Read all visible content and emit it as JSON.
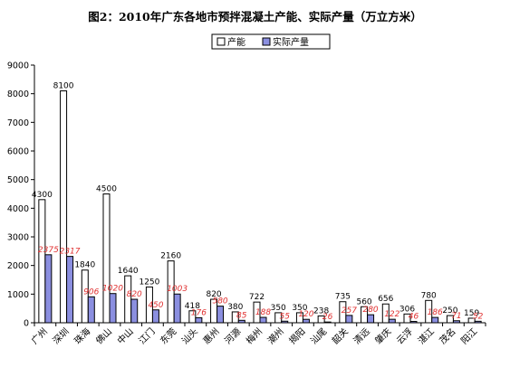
{
  "chart_data": {
    "type": "bar",
    "title": "图2：2010年广东各地市预拌混凝土产能、实际产量（万立方米）",
    "xlabel": "",
    "ylabel": "",
    "ylim": [
      0,
      9000
    ],
    "yticks": [
      0,
      1000,
      2000,
      3000,
      4000,
      5000,
      6000,
      7000,
      8000,
      9000
    ],
    "grid": false,
    "legend_position": "top-right",
    "categories": [
      "广州",
      "深圳",
      "珠海",
      "佛山",
      "中山",
      "江门",
      "东莞",
      "汕头",
      "惠州",
      "河源",
      "梅州",
      "潮州",
      "揭阳",
      "汕尾",
      "韶关",
      "清远",
      "肇庆",
      "云浮",
      "湛江",
      "茂名",
      "阳江"
    ],
    "series": [
      {
        "name": "产能",
        "color": "#ffffff",
        "label_color": "#000000",
        "values": [
          4300,
          8100,
          1840,
          4500,
          1640,
          1250,
          2160,
          418,
          820,
          380,
          722,
          350,
          350,
          238,
          735,
          560,
          656,
          306,
          780,
          250,
          159
        ]
      },
      {
        "name": "实际产量",
        "color": "#8b8fe0",
        "label_color": "#e03030",
        "values": [
          2375,
          2317,
          906,
          1020,
          820,
          450,
          1003,
          176,
          580,
          85,
          188,
          55,
          120,
          26,
          257,
          280,
          122,
          46,
          186,
          71,
          52
        ]
      }
    ]
  }
}
